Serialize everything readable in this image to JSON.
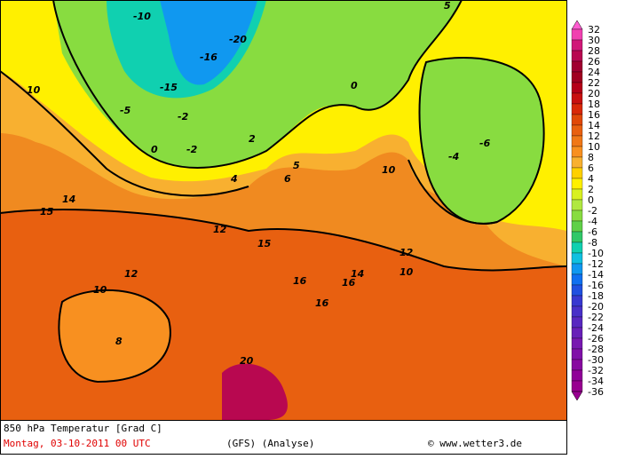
{
  "map": {
    "footer": {
      "title": "850 hPa Temperatur [Grad C]",
      "date": "Montag, 03-10-2011  00 UTC",
      "model": "(GFS)  (Analyse)",
      "credit": "© www.wetter3.de"
    },
    "legend": {
      "values": [
        32,
        30,
        28,
        26,
        24,
        22,
        20,
        18,
        16,
        14,
        12,
        10,
        8,
        6,
        4,
        2,
        0,
        -2,
        -4,
        -6,
        -8,
        -10,
        -12,
        -14,
        -16,
        -18,
        -20,
        -22,
        -24,
        -26,
        -28,
        -30,
        -32,
        -34,
        -36
      ],
      "colors": [
        "#ff5cd0",
        "#f040b0",
        "#d01878",
        "#b80850",
        "#a00030",
        "#a00020",
        "#b40018",
        "#c81010",
        "#d82808",
        "#e04808",
        "#e86010",
        "#f07818",
        "#f89020",
        "#f8b030",
        "#ffd000",
        "#fff000",
        "#d8f020",
        "#b0e840",
        "#88dc40",
        "#60d048",
        "#30c868",
        "#10d0b0",
        "#10c0e0",
        "#1098f0",
        "#1070f0",
        "#2050e0",
        "#3838d0",
        "#4830c8",
        "#5828c0",
        "#6820b8",
        "#7818b0",
        "#8010a8",
        "#8808a0",
        "#900098",
        "#980090"
      ]
    },
    "labels": [
      "-10",
      "-15",
      "-20",
      "-16",
      "-5",
      "-2",
      "0",
      "5",
      "10",
      "15",
      "20",
      "12",
      "14",
      "16",
      "8",
      "2",
      "4",
      "6",
      "-4",
      "-6",
      "10",
      "15",
      "16",
      "12",
      "10",
      "5",
      "0",
      "-2",
      "10",
      "12",
      "16",
      "14"
    ]
  }
}
